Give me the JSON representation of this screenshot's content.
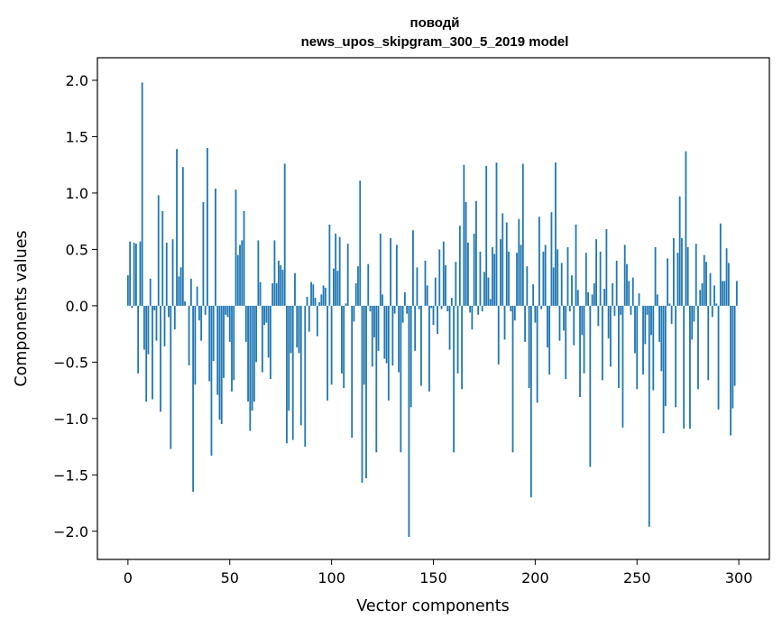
{
  "chart_data": {
    "type": "bar",
    "title_line1": "поводй",
    "title_line2": "news_upos_skipgram_300_5_2019 model",
    "xlabel": "Vector components",
    "ylabel": "Components values",
    "xlim": [
      -15,
      315
    ],
    "ylim": [
      -2.25,
      2.2
    ],
    "xticks": [
      0,
      50,
      100,
      150,
      200,
      250,
      300
    ],
    "xtick_labels": [
      "0",
      "50",
      "100",
      "150",
      "200",
      "250",
      "300"
    ],
    "yticks": [
      2.0,
      1.5,
      1.0,
      0.5,
      0.0,
      -0.5,
      -1.0,
      -1.5,
      -2.0
    ],
    "ytick_labels": [
      "2.0",
      "1.5",
      "1.0",
      "0.5",
      "0.0",
      "−0.5",
      "−1.0",
      "−1.5",
      "−2.0"
    ],
    "bar_color": "#1f77b4",
    "values": [
      0.27,
      0.57,
      -0.02,
      0.56,
      0.55,
      -0.6,
      0.57,
      1.98,
      -0.39,
      -0.85,
      -0.43,
      0.24,
      -0.83,
      -0.04,
      -0.31,
      0.98,
      -0.94,
      0.84,
      -0.36,
      0.56,
      -0.1,
      -1.27,
      0.59,
      -0.21,
      1.39,
      0.26,
      0.34,
      1.23,
      0.04,
      0.0,
      -0.53,
      0.24,
      -1.65,
      -0.7,
      0.17,
      -0.13,
      -0.31,
      0.92,
      -0.08,
      1.4,
      -0.67,
      -1.33,
      -0.49,
      1.04,
      -0.79,
      -1.01,
      -1.05,
      -0.64,
      -0.08,
      -0.1,
      -0.32,
      -0.76,
      -0.66,
      1.03,
      0.45,
      0.54,
      0.58,
      0.84,
      -0.32,
      -0.85,
      -1.11,
      -0.93,
      -0.85,
      -0.5,
      0.58,
      0.21,
      -0.59,
      -0.17,
      -0.15,
      -0.46,
      -0.65,
      0.2,
      0.58,
      0.2,
      0.4,
      0.36,
      0.32,
      1.26,
      -1.22,
      -0.93,
      -0.42,
      -1.19,
      0.29,
      -0.37,
      -0.42,
      -1.06,
      0.0,
      -1.25,
      0.08,
      -0.23,
      0.21,
      0.19,
      0.07,
      -0.27,
      0.03,
      0.1,
      0.18,
      0.16,
      -0.84,
      0.72,
      -0.7,
      0.33,
      0.64,
      0.31,
      0.61,
      -0.6,
      -0.73,
      0.02,
      0.55,
      0.0,
      -1.17,
      -0.14,
      0.2,
      0.35,
      1.11,
      -1.57,
      -0.7,
      -1.53,
      0.37,
      -0.05,
      -0.54,
      -0.28,
      -1.3,
      -0.4,
      0.64,
      0.1,
      -0.47,
      -0.51,
      -0.84,
      0.6,
      -0.53,
      -0.07,
      0.54,
      -0.59,
      -1.3,
      -0.15,
      0.12,
      -0.07,
      -2.05,
      -0.9,
      0.67,
      -0.4,
      0.34,
      -0.03,
      -0.71,
      0.0,
      0.4,
      0.18,
      -0.76,
      -0.02,
      -0.17,
      0.25,
      -0.25,
      0.5,
      -0.03,
      0.57,
      0.36,
      -0.05,
      -0.39,
      0.07,
      -1.3,
      0.39,
      -0.6,
      0.71,
      -0.74,
      1.25,
      0.92,
      0.56,
      -0.06,
      -0.21,
      0.64,
      0.93,
      -0.08,
      0.48,
      -0.05,
      0.3,
      1.24,
      0.25,
      0.06,
      0.52,
      0.46,
      1.27,
      -0.52,
      0.59,
      0.82,
      -0.3,
      0.74,
      0.48,
      -0.05,
      -1.3,
      -0.13,
      0.47,
      0.77,
      0.54,
      1.26,
      -0.32,
      0.35,
      -0.73,
      -1.7,
      0.19,
      -0.15,
      -0.86,
      0.79,
      -0.03,
      0.48,
      0.54,
      -0.37,
      -0.61,
      0.83,
      0.34,
      1.27,
      0.5,
      -0.31,
      0.38,
      -0.22,
      -0.65,
      0.52,
      -0.05,
      0.27,
      -0.35,
      0.72,
      0.14,
      -0.81,
      -0.26,
      -0.6,
      0.47,
      0.12,
      -1.43,
      0.1,
      0.2,
      0.59,
      -0.18,
      0.48,
      -0.66,
      0.15,
      0.68,
      -0.29,
      -0.54,
      0.2,
      -0.09,
      0.4,
      -0.73,
      -0.08,
      -1.08,
      0.54,
      0.37,
      0.22,
      -0.08,
      0.25,
      -0.42,
      -0.74,
      0.11,
      0.0,
      -0.61,
      -0.34,
      -0.08,
      -1.96,
      -0.26,
      -0.75,
      0.52,
      0.1,
      -0.32,
      -0.58,
      -1.13,
      -0.89,
      0.42,
      0.02,
      -0.16,
      0.6,
      -0.9,
      0.47,
      0.97,
      0.6,
      -1.09,
      1.37,
      0.52,
      -1.09,
      -0.3,
      -0.14,
      0.55,
      -0.74,
      0.14,
      0.2,
      0.45,
      0.39,
      -0.66,
      0.29,
      -0.1,
      0.18,
      0.02,
      -0.92,
      0.73,
      0.22,
      0.22,
      0.51,
      0.38,
      -1.15,
      -0.91,
      -0.71,
      0.22
    ]
  }
}
